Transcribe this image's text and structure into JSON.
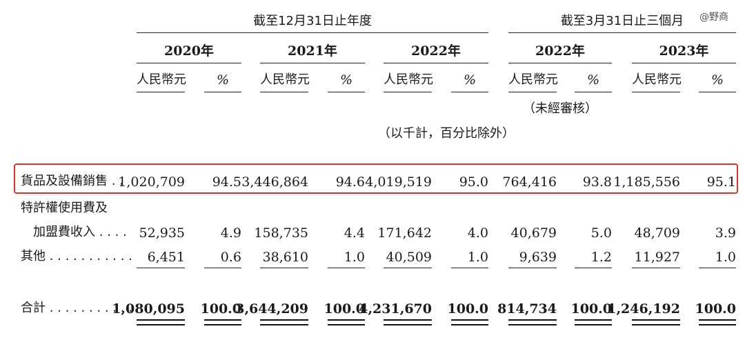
{
  "watermark": "@野商",
  "headers": {
    "group_year": "截至12月31日止年度",
    "group_quarter": "截至3月31日止三個月",
    "years": [
      "2020年",
      "2021年",
      "2022年",
      "2022年",
      "2023年"
    ],
    "currency": "人民幣元",
    "percent": "%",
    "unaudited": "（未經審核）",
    "unit_note": "（以千計，百分比除外）"
  },
  "rows": [
    {
      "label": "貨品及設備銷售 . .",
      "values": [
        "1,020,709",
        "94.5",
        "3,446,864",
        "94.6",
        "4,019,519",
        "95.0",
        "764,416",
        "93.8",
        "1,185,556",
        "95.1"
      ]
    },
    {
      "label": "特許權使用費及",
      "label2": "加盟費收入 . . . .",
      "values": [
        "52,935",
        "4.9",
        "158,735",
        "4.4",
        "171,642",
        "4.0",
        "40,679",
        "5.0",
        "48,709",
        "3.9"
      ]
    },
    {
      "label": "其他 . . . . . . . . . . .",
      "values": [
        "6,451",
        "0.6",
        "38,610",
        "1.0",
        "40,509",
        "1.0",
        "9,639",
        "1.2",
        "11,927",
        "1.0"
      ]
    },
    {
      "label": "合計 . . . . . . . . . . .",
      "values": [
        "1,080,095",
        "100.0",
        "3,644,209",
        "100.0",
        "4,231,670",
        "100.0",
        "814,734",
        "100.0",
        "1,246,192",
        "100.0"
      ]
    }
  ],
  "highlight_color": "#d9352b"
}
